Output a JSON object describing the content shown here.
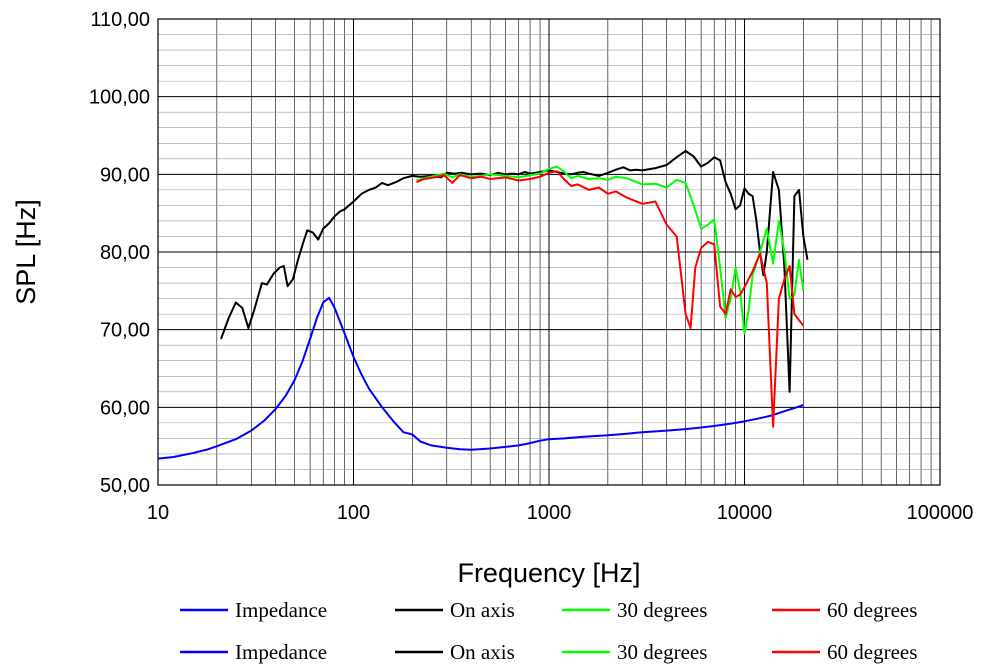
{
  "chart_data": {
    "type": "line",
    "xscale": "log",
    "xlabel": "Frequency [Hz]",
    "ylabel": "SPL [Hz]",
    "xlim": [
      10,
      100000
    ],
    "ylim": [
      50,
      110
    ],
    "grid": true,
    "legend_position": "bottom",
    "x_ticks": [
      {
        "value": 10,
        "label": "10"
      },
      {
        "value": 100,
        "label": "100"
      },
      {
        "value": 1000,
        "label": "1000"
      },
      {
        "value": 10000,
        "label": "10000"
      },
      {
        "value": 100000,
        "label": "100000"
      }
    ],
    "y_ticks": [
      {
        "value": 50,
        "label": "50,00"
      },
      {
        "value": 60,
        "label": "60,00"
      },
      {
        "value": 70,
        "label": "70,00"
      },
      {
        "value": 80,
        "label": "80,00"
      },
      {
        "value": 90,
        "label": "90,00"
      },
      {
        "value": 100,
        "label": "100,00"
      },
      {
        "value": 110,
        "label": "110,00"
      }
    ],
    "series": [
      {
        "name": "Impedance",
        "color": "#0000ff",
        "points": [
          [
            10,
            53.4
          ],
          [
            12,
            53.6
          ],
          [
            15,
            54.1
          ],
          [
            18,
            54.6
          ],
          [
            20,
            55
          ],
          [
            25,
            55.9
          ],
          [
            30,
            57
          ],
          [
            35,
            58.3
          ],
          [
            40,
            59.8
          ],
          [
            45,
            61.5
          ],
          [
            50,
            63.5
          ],
          [
            55,
            66
          ],
          [
            60,
            68.8
          ],
          [
            65,
            71.5
          ],
          [
            70,
            73.5
          ],
          [
            75,
            74.1
          ],
          [
            80,
            72.8
          ],
          [
            90,
            69.5
          ],
          [
            100,
            66.5
          ],
          [
            110,
            64.2
          ],
          [
            120,
            62.4
          ],
          [
            140,
            60
          ],
          [
            160,
            58.2
          ],
          [
            180,
            56.8
          ],
          [
            200,
            56.5
          ],
          [
            220,
            55.6
          ],
          [
            250,
            55.1
          ],
          [
            300,
            54.8
          ],
          [
            350,
            54.6
          ],
          [
            400,
            54.55
          ],
          [
            500,
            54.7
          ],
          [
            600,
            54.9
          ],
          [
            700,
            55.1
          ],
          [
            800,
            55.4
          ],
          [
            900,
            55.7
          ],
          [
            1000,
            55.9
          ],
          [
            1200,
            56
          ],
          [
            1500,
            56.2
          ],
          [
            2000,
            56.4
          ],
          [
            2500,
            56.6
          ],
          [
            3000,
            56.8
          ],
          [
            4000,
            57
          ],
          [
            5000,
            57.2
          ],
          [
            6000,
            57.4
          ],
          [
            7000,
            57.6
          ],
          [
            8000,
            57.8
          ],
          [
            9000,
            58
          ],
          [
            10000,
            58.2
          ],
          [
            12000,
            58.6
          ],
          [
            14000,
            59
          ],
          [
            16000,
            59.5
          ],
          [
            18000,
            59.9
          ],
          [
            20000,
            60.3
          ]
        ]
      },
      {
        "name": "On axis",
        "color": "#000000",
        "points": [
          [
            21,
            68.8
          ],
          [
            23,
            71.5
          ],
          [
            25,
            73.5
          ],
          [
            27,
            72.8
          ],
          [
            29,
            70.2
          ],
          [
            31,
            72.5
          ],
          [
            34,
            76
          ],
          [
            36,
            75.8
          ],
          [
            39,
            77.2
          ],
          [
            42,
            78
          ],
          [
            44,
            78.2
          ],
          [
            46,
            75.6
          ],
          [
            49,
            76.5
          ],
          [
            52,
            79
          ],
          [
            55,
            81
          ],
          [
            58,
            82.8
          ],
          [
            62,
            82.5
          ],
          [
            66,
            81.6
          ],
          [
            70,
            83
          ],
          [
            75,
            83.7
          ],
          [
            80,
            84.6
          ],
          [
            85,
            85.2
          ],
          [
            90,
            85.5
          ],
          [
            100,
            86.5
          ],
          [
            110,
            87.5
          ],
          [
            120,
            88
          ],
          [
            130,
            88.3
          ],
          [
            140,
            88.9
          ],
          [
            150,
            88.6
          ],
          [
            165,
            89
          ],
          [
            180,
            89.5
          ],
          [
            200,
            89.8
          ],
          [
            220,
            89.7
          ],
          [
            250,
            89.8
          ],
          [
            280,
            89.6
          ],
          [
            300,
            90.2
          ],
          [
            330,
            90.1
          ],
          [
            360,
            90.2
          ],
          [
            400,
            90
          ],
          [
            450,
            90.1
          ],
          [
            500,
            89.9
          ],
          [
            550,
            90.2
          ],
          [
            600,
            90
          ],
          [
            650,
            90.1
          ],
          [
            700,
            90
          ],
          [
            750,
            90.3
          ],
          [
            800,
            90.1
          ],
          [
            900,
            90.3
          ],
          [
            1000,
            90.5
          ],
          [
            1100,
            90.3
          ],
          [
            1200,
            90.1
          ],
          [
            1300,
            90
          ],
          [
            1400,
            90.2
          ],
          [
            1500,
            90.3
          ],
          [
            1600,
            90.1
          ],
          [
            1800,
            89.8
          ],
          [
            2000,
            90.2
          ],
          [
            2200,
            90.6
          ],
          [
            2400,
            90.9
          ],
          [
            2600,
            90.5
          ],
          [
            2800,
            90.6
          ],
          [
            3000,
            90.5
          ],
          [
            3500,
            90.8
          ],
          [
            4000,
            91.2
          ],
          [
            4500,
            92.2
          ],
          [
            5000,
            93
          ],
          [
            5500,
            92.3
          ],
          [
            6000,
            91
          ],
          [
            6500,
            91.5
          ],
          [
            7000,
            92.2
          ],
          [
            7500,
            91.8
          ],
          [
            8000,
            89
          ],
          [
            8500,
            87.5
          ],
          [
            9000,
            85.5
          ],
          [
            9500,
            86
          ],
          [
            10000,
            88.2
          ],
          [
            10500,
            87.5
          ],
          [
            11000,
            87.2
          ],
          [
            11500,
            84
          ],
          [
            12000,
            80
          ],
          [
            12500,
            77
          ],
          [
            13000,
            80
          ],
          [
            14000,
            90.3
          ],
          [
            15000,
            88
          ],
          [
            16000,
            78
          ],
          [
            17000,
            62
          ],
          [
            18000,
            87.2
          ],
          [
            19000,
            88
          ],
          [
            20000,
            82
          ],
          [
            21000,
            79
          ]
        ]
      },
      {
        "name": "30 degrees",
        "color": "#00ff00",
        "points": [
          [
            210,
            89.2
          ],
          [
            230,
            89.5
          ],
          [
            260,
            89.8
          ],
          [
            290,
            90.1
          ],
          [
            320,
            89.6
          ],
          [
            350,
            90
          ],
          [
            400,
            89.7
          ],
          [
            450,
            89.8
          ],
          [
            500,
            90
          ],
          [
            600,
            89.8
          ],
          [
            700,
            89.6
          ],
          [
            800,
            89.9
          ],
          [
            900,
            90.1
          ],
          [
            1000,
            90.7
          ],
          [
            1100,
            91
          ],
          [
            1200,
            90.3
          ],
          [
            1300,
            89.5
          ],
          [
            1400,
            89.8
          ],
          [
            1600,
            89.4
          ],
          [
            1800,
            89.5
          ],
          [
            2000,
            89.3
          ],
          [
            2200,
            89.7
          ],
          [
            2500,
            89.5
          ],
          [
            3000,
            88.7
          ],
          [
            3500,
            88.8
          ],
          [
            4000,
            88.3
          ],
          [
            4500,
            89.3
          ],
          [
            5000,
            88.9
          ],
          [
            5500,
            86
          ],
          [
            6000,
            83
          ],
          [
            6500,
            83.5
          ],
          [
            7000,
            84.2
          ],
          [
            7500,
            78
          ],
          [
            8000,
            71.5
          ],
          [
            8500,
            74
          ],
          [
            9000,
            78
          ],
          [
            9500,
            75
          ],
          [
            10000,
            69.5
          ],
          [
            10500,
            72.5
          ],
          [
            11000,
            77
          ],
          [
            12000,
            80
          ],
          [
            13000,
            83
          ],
          [
            14000,
            78.5
          ],
          [
            15000,
            84
          ],
          [
            16000,
            80
          ],
          [
            17000,
            74
          ],
          [
            18000,
            74.5
          ],
          [
            19000,
            79
          ],
          [
            20000,
            75
          ]
        ]
      },
      {
        "name": "60 degrees",
        "color": "#ff0000",
        "points": [
          [
            210,
            89
          ],
          [
            230,
            89.4
          ],
          [
            260,
            89.6
          ],
          [
            290,
            89.9
          ],
          [
            320,
            88.9
          ],
          [
            350,
            89.9
          ],
          [
            400,
            89.5
          ],
          [
            450,
            89.7
          ],
          [
            500,
            89.4
          ],
          [
            600,
            89.6
          ],
          [
            700,
            89.2
          ],
          [
            800,
            89.4
          ],
          [
            900,
            89.7
          ],
          [
            1000,
            90.2
          ],
          [
            1100,
            90.4
          ],
          [
            1200,
            89.3
          ],
          [
            1300,
            88.5
          ],
          [
            1400,
            88.7
          ],
          [
            1600,
            88
          ],
          [
            1800,
            88.3
          ],
          [
            2000,
            87.5
          ],
          [
            2200,
            87.8
          ],
          [
            2500,
            87
          ],
          [
            3000,
            86.2
          ],
          [
            3500,
            86.5
          ],
          [
            4000,
            83.5
          ],
          [
            4500,
            82
          ],
          [
            5000,
            72
          ],
          [
            5300,
            70.2
          ],
          [
            5600,
            78
          ],
          [
            6000,
            80.5
          ],
          [
            6500,
            81.3
          ],
          [
            7000,
            81
          ],
          [
            7500,
            73
          ],
          [
            8000,
            72
          ],
          [
            8500,
            75.2
          ],
          [
            9000,
            74.2
          ],
          [
            9500,
            74.5
          ],
          [
            10000,
            75.5
          ],
          [
            11000,
            77.5
          ],
          [
            12000,
            79.8
          ],
          [
            13000,
            76
          ],
          [
            14000,
            57.5
          ],
          [
            15000,
            74
          ],
          [
            16000,
            76.5
          ],
          [
            17000,
            78.2
          ],
          [
            18000,
            72
          ],
          [
            20000,
            70.5
          ]
        ]
      }
    ]
  },
  "legend_rows": [
    [
      {
        "label": "Impedance",
        "color": "#0000ff"
      },
      {
        "label": "On axis",
        "color": "#000000"
      },
      {
        "label": "30 degrees",
        "color": "#00ff00"
      },
      {
        "label": "60 degrees",
        "color": "#ff0000"
      }
    ],
    [
      {
        "label": "Impedance",
        "color": "#0000ff"
      },
      {
        "label": "On axis",
        "color": "#000000"
      },
      {
        "label": "30 degrees",
        "color": "#00ff00"
      },
      {
        "label": "60 degrees",
        "color": "#ff0000"
      }
    ]
  ]
}
